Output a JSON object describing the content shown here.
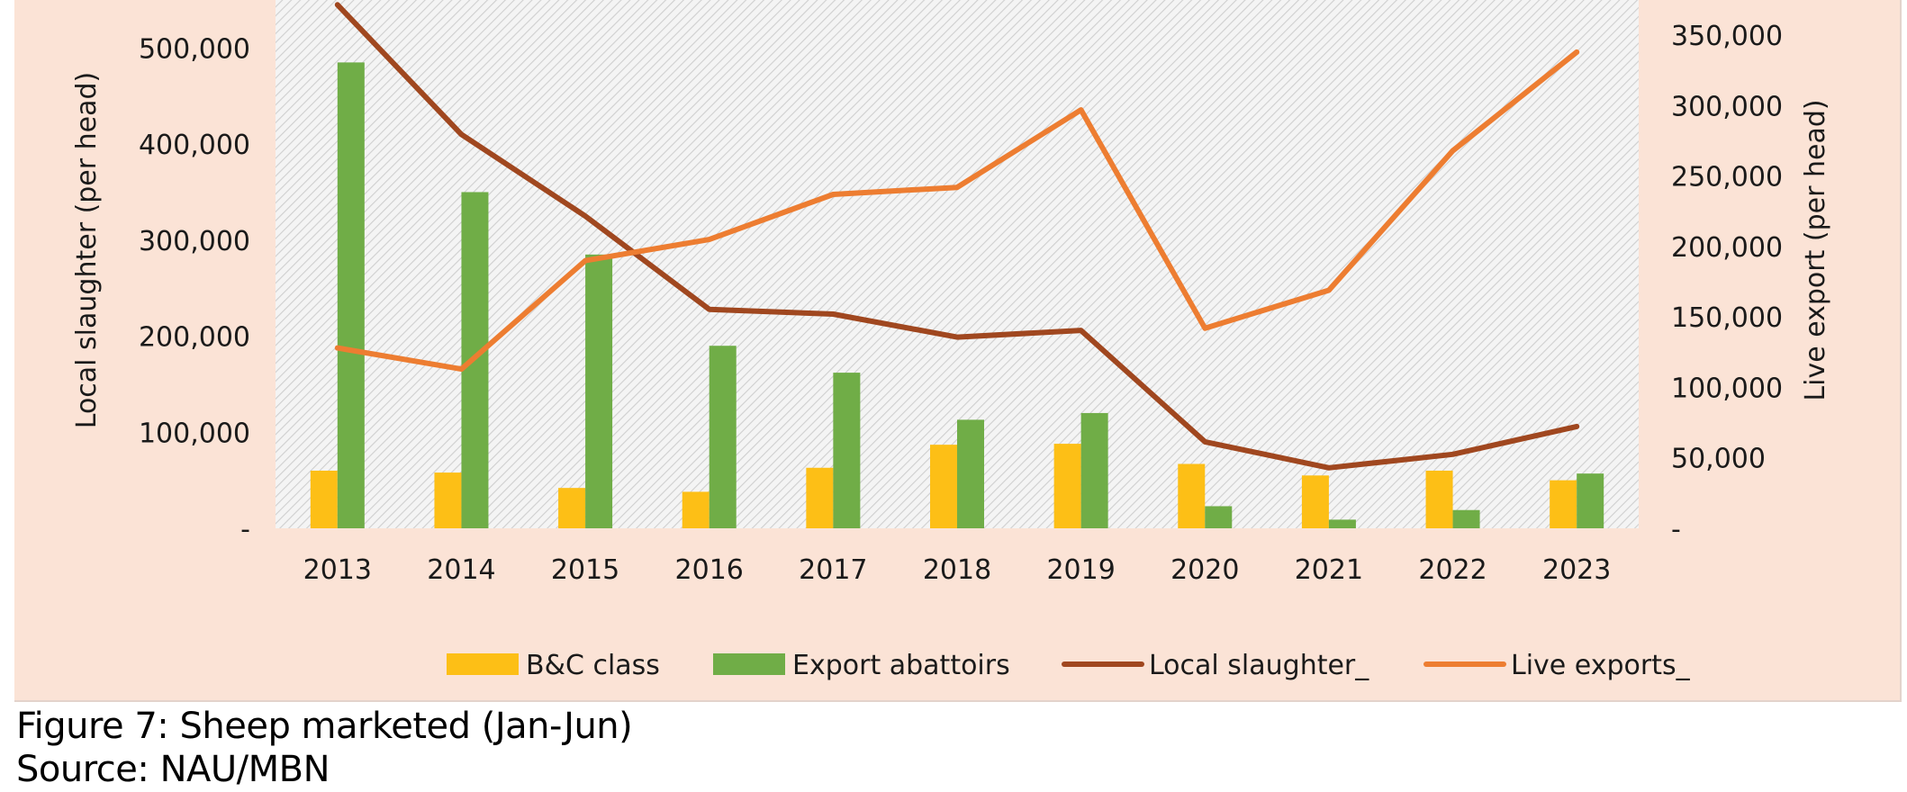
{
  "caption": {
    "title": "Figure 7: Sheep marketed (Jan-Jun)",
    "source": "Source: NAU/MBN"
  },
  "colors": {
    "background": "#fbe3d6",
    "plot_background": "#e7e7e7",
    "bc_class": "#fdbf16",
    "export_abattoirs": "#70ad47",
    "local_slaughter": "#a0471f",
    "live_exports": "#ed7d31"
  },
  "chart_data": {
    "type": "bar",
    "title": "",
    "categories": [
      "2013",
      "2014",
      "2015",
      "2016",
      "2017",
      "2018",
      "2019",
      "2020",
      "2021",
      "2022",
      "2023"
    ],
    "ylabel": "Local slaughter (per head)",
    "y2label": "Live export (per head)",
    "ylim": [
      0,
      550000
    ],
    "y2lim": [
      0,
      375000
    ],
    "yticks": [
      0,
      100000,
      200000,
      300000,
      400000,
      500000
    ],
    "ytick_labels": [
      "-",
      "100,000",
      "200,000",
      "300,000",
      "400,000",
      "500,000"
    ],
    "y2ticks": [
      0,
      50000,
      100000,
      150000,
      200000,
      250000,
      300000,
      350000
    ],
    "y2tick_labels": [
      "-",
      "50,000",
      "100,000",
      "150,000",
      "200,000",
      "250,000",
      "300,000",
      "350,000"
    ],
    "legend_position": "bottom",
    "series": [
      {
        "name": "B&C class",
        "type": "bar",
        "axis": "left",
        "color": "#fdbf16",
        "values": [
          60000,
          58000,
          42000,
          38000,
          63000,
          87000,
          88000,
          67000,
          55000,
          60000,
          50000
        ]
      },
      {
        "name": "Export abattoirs",
        "type": "bar",
        "axis": "left",
        "color": "#70ad47",
        "values": [
          485000,
          350000,
          285000,
          190000,
          162000,
          113000,
          120000,
          23000,
          9000,
          19000,
          57000
        ]
      },
      {
        "name": "Local slaughter_",
        "type": "line",
        "axis": "left",
        "color": "#a0471f",
        "values": [
          545000,
          410000,
          325000,
          228000,
          223000,
          199000,
          206000,
          90000,
          63000,
          77000,
          106000
        ]
      },
      {
        "name": "Live exports_",
        "type": "line",
        "axis": "right",
        "color": "#ed7d31",
        "values": [
          128000,
          113000,
          190000,
          205000,
          237000,
          242000,
          297000,
          142000,
          169000,
          268000,
          338000
        ]
      }
    ]
  }
}
